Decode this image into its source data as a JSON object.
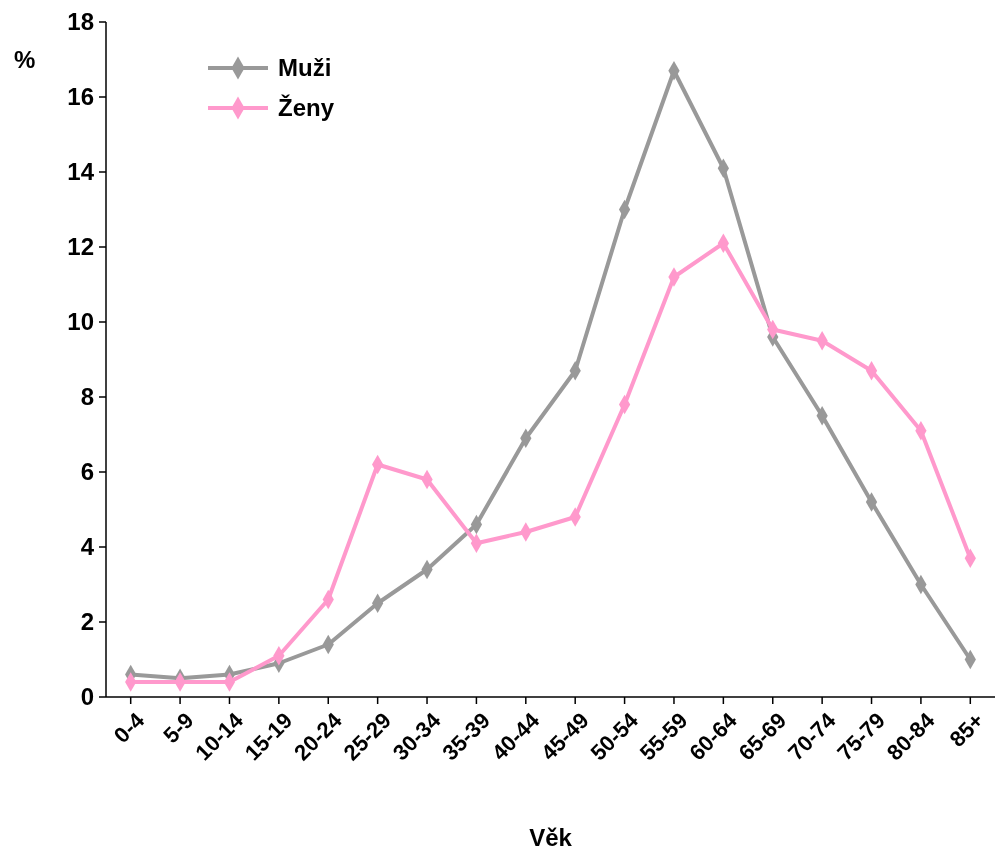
{
  "chart_data": {
    "type": "line",
    "xlabel": "Věk",
    "ylabel": "%",
    "categories": [
      "0-4",
      "5-9",
      "10-14",
      "15-19",
      "20-24",
      "25-29",
      "30-34",
      "35-39",
      "40-44",
      "45-49",
      "50-54",
      "55-59",
      "60-64",
      "65-69",
      "70-74",
      "75-79",
      "80-84",
      "85+"
    ],
    "series": [
      {
        "name": "Muži",
        "color": "#999999",
        "values": [
          0.6,
          0.5,
          0.6,
          0.9,
          1.4,
          2.5,
          3.4,
          4.6,
          6.9,
          8.7,
          13.0,
          16.7,
          14.1,
          9.6,
          7.5,
          5.2,
          3.0,
          1.0
        ]
      },
      {
        "name": "Ženy",
        "color": "#ff99cc",
        "values": [
          0.4,
          0.4,
          0.4,
          1.1,
          2.6,
          6.2,
          5.8,
          4.1,
          4.4,
          4.8,
          7.8,
          11.2,
          12.1,
          9.8,
          9.5,
          8.7,
          7.1,
          3.7
        ]
      }
    ],
    "ylim": [
      0,
      18
    ],
    "yticks": [
      0,
      2,
      4,
      6,
      8,
      10,
      12,
      14,
      16,
      18
    ],
    "grid": false,
    "legend": "top left",
    "marker": "diamond",
    "line_style": "solid"
  }
}
